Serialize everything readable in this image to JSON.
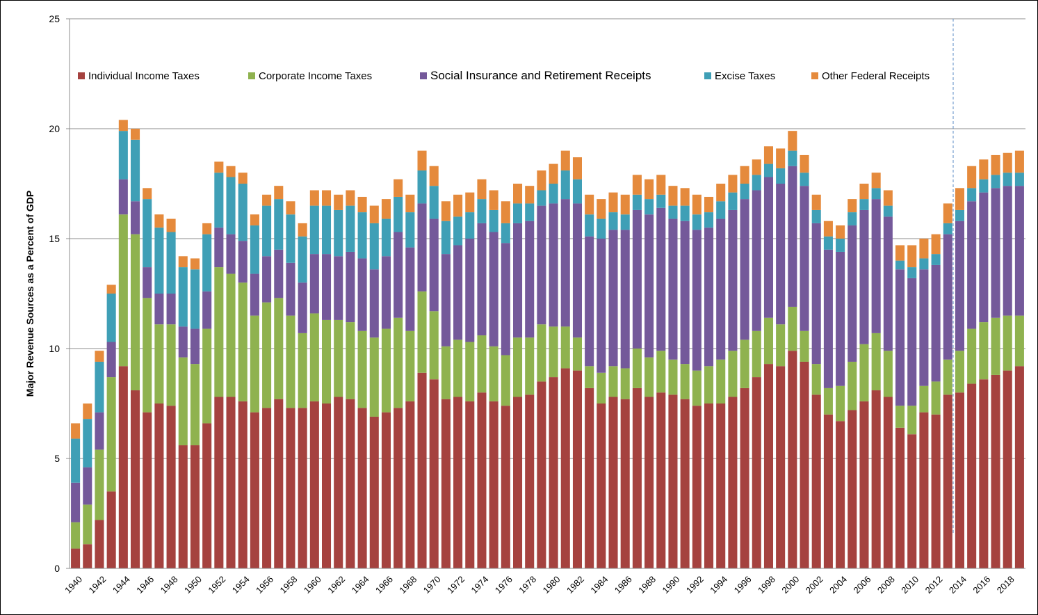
{
  "chart_data": {
    "type": "stacked_bar",
    "y_label": "Major Revenue Sources as a Percent of GDP",
    "categories": [
      "1940",
      null,
      "1942",
      null,
      "1944",
      null,
      "1946",
      null,
      "1948",
      null,
      "1950",
      null,
      "1952",
      null,
      "1954",
      null,
      "1956",
      null,
      "1958",
      null,
      "1960",
      null,
      "1962",
      null,
      "1964",
      null,
      "1966",
      null,
      "1968",
      null,
      "1970",
      null,
      "1972",
      null,
      "1974",
      null,
      "1976",
      null,
      "1978",
      null,
      "1980",
      null,
      "1982",
      null,
      "1984",
      null,
      "1986",
      null,
      "1988",
      null,
      "1990",
      null,
      "1992",
      null,
      "1994",
      null,
      "1996",
      null,
      "1998",
      null,
      "2000",
      null,
      "2002",
      null,
      "2004",
      null,
      "2006",
      null,
      "2008",
      null,
      "2010",
      null,
      "2012",
      null,
      "2014",
      null,
      "2016",
      null,
      "2018",
      null
    ],
    "series": [
      {
        "name": "Individual Income Taxes",
        "color": "#a5423f",
        "values": [
          0.9,
          1.1,
          2.2,
          3.5,
          9.2,
          8.1,
          7.1,
          7.5,
          7.4,
          5.6,
          5.6,
          6.6,
          7.8,
          7.8,
          7.6,
          7.1,
          7.3,
          7.7,
          7.3,
          7.3,
          7.6,
          7.5,
          7.8,
          7.7,
          7.3,
          6.9,
          7.1,
          7.3,
          7.6,
          8.9,
          8.6,
          7.7,
          7.8,
          7.6,
          8.0,
          7.6,
          7.4,
          7.8,
          7.9,
          8.5,
          8.7,
          9.1,
          9.0,
          8.2,
          7.5,
          7.8,
          7.7,
          8.2,
          7.8,
          8.0,
          7.9,
          7.7,
          7.4,
          7.5,
          7.5,
          7.8,
          8.2,
          8.7,
          9.3,
          9.2,
          9.9,
          9.4,
          7.9,
          7.0,
          6.7,
          7.2,
          7.6,
          8.1,
          7.8,
          6.4,
          6.1,
          7.1,
          7.0,
          7.9,
          8.0,
          8.4,
          8.6,
          8.8,
          9.0,
          9.2
        ]
      },
      {
        "name": "Corporate Income Taxes",
        "color": "#8fb24f",
        "values": [
          1.2,
          1.8,
          3.2,
          5.2,
          6.9,
          7.1,
          5.2,
          3.6,
          3.7,
          4.0,
          3.7,
          4.3,
          5.9,
          5.6,
          5.4,
          4.4,
          4.8,
          4.6,
          4.2,
          3.4,
          4.0,
          3.8,
          3.5,
          3.5,
          3.5,
          3.6,
          3.8,
          4.1,
          3.2,
          3.7,
          3.1,
          2.4,
          2.6,
          2.7,
          2.6,
          2.5,
          2.3,
          2.7,
          2.6,
          2.6,
          2.3,
          1.9,
          1.5,
          1.0,
          1.4,
          1.4,
          1.4,
          1.8,
          1.8,
          1.9,
          1.6,
          1.6,
          1.6,
          1.7,
          2.0,
          2.1,
          2.2,
          2.1,
          2.1,
          1.9,
          2.0,
          1.4,
          1.4,
          1.2,
          1.6,
          2.2,
          2.6,
          2.6,
          2.1,
          1.0,
          1.3,
          1.2,
          1.5,
          1.6,
          1.9,
          2.5,
          2.6,
          2.6,
          2.5,
          2.3
        ]
      },
      {
        "name": "Social Insurance and Retirement Receipts",
        "color": "#74599a",
        "values": [
          1.8,
          1.7,
          1.7,
          1.6,
          1.6,
          1.5,
          1.4,
          1.4,
          1.4,
          1.4,
          1.6,
          1.7,
          1.8,
          1.8,
          1.9,
          1.9,
          2.1,
          2.2,
          2.4,
          2.3,
          2.7,
          3.0,
          2.9,
          3.2,
          3.3,
          3.1,
          3.3,
          3.9,
          3.8,
          4.0,
          4.2,
          4.2,
          4.3,
          4.7,
          5.1,
          5.2,
          5.1,
          5.2,
          5.3,
          5.4,
          5.6,
          5.8,
          6.1,
          5.9,
          6.1,
          6.2,
          6.3,
          6.3,
          6.5,
          6.5,
          6.4,
          6.5,
          6.4,
          6.3,
          6.4,
          6.4,
          6.4,
          6.4,
          6.4,
          6.4,
          6.4,
          6.6,
          6.4,
          6.3,
          6.1,
          6.2,
          6.1,
          6.1,
          6.1,
          6.2,
          5.8,
          5.3,
          5.3,
          5.7,
          5.9,
          5.8,
          5.9,
          5.9,
          5.9,
          5.9
        ]
      },
      {
        "name": "Excise Taxes",
        "color": "#3f9fb6",
        "values": [
          2.0,
          2.2,
          2.3,
          2.2,
          2.2,
          2.8,
          3.1,
          3.0,
          2.8,
          2.7,
          2.7,
          2.6,
          2.5,
          2.6,
          2.6,
          2.2,
          2.3,
          2.3,
          2.2,
          2.1,
          2.2,
          2.2,
          2.1,
          2.1,
          2.1,
          2.1,
          1.7,
          1.6,
          1.6,
          1.5,
          1.5,
          1.5,
          1.3,
          1.2,
          1.1,
          1.0,
          0.9,
          0.9,
          0.8,
          0.7,
          0.9,
          1.3,
          1.1,
          1.0,
          0.9,
          0.8,
          0.7,
          0.7,
          0.7,
          0.6,
          0.6,
          0.7,
          0.7,
          0.7,
          0.8,
          0.8,
          0.7,
          0.7,
          0.6,
          0.7,
          0.7,
          0.6,
          0.6,
          0.6,
          0.6,
          0.6,
          0.5,
          0.5,
          0.5,
          0.4,
          0.5,
          0.5,
          0.5,
          0.5,
          0.5,
          0.6,
          0.6,
          0.6,
          0.6,
          0.6
        ]
      },
      {
        "name": "Other Federal Receipts",
        "color": "#e58a3c",
        "values": [
          0.7,
          0.7,
          0.5,
          0.4,
          0.5,
          0.5,
          0.5,
          0.6,
          0.6,
          0.5,
          0.5,
          0.5,
          0.5,
          0.5,
          0.5,
          0.5,
          0.5,
          0.6,
          0.6,
          0.6,
          0.7,
          0.7,
          0.7,
          0.7,
          0.7,
          0.8,
          0.9,
          0.8,
          0.8,
          0.9,
          0.9,
          0.9,
          1.0,
          0.9,
          0.9,
          0.9,
          1.0,
          0.9,
          0.8,
          0.9,
          0.9,
          0.9,
          1.0,
          0.9,
          0.9,
          0.9,
          0.9,
          0.9,
          0.9,
          0.9,
          0.9,
          0.8,
          0.9,
          0.7,
          0.8,
          0.8,
          0.8,
          0.7,
          0.8,
          0.9,
          0.9,
          0.8,
          0.7,
          0.7,
          0.6,
          0.6,
          0.7,
          0.7,
          0.7,
          0.7,
          1.0,
          0.9,
          0.9,
          0.9,
          1.0,
          1.0,
          0.9,
          0.9,
          0.9,
          1.0
        ]
      }
    ],
    "ylim": [
      0,
      25
    ],
    "yticks": [
      0,
      5,
      10,
      15,
      20,
      25
    ],
    "grid": true,
    "legend": "top"
  }
}
